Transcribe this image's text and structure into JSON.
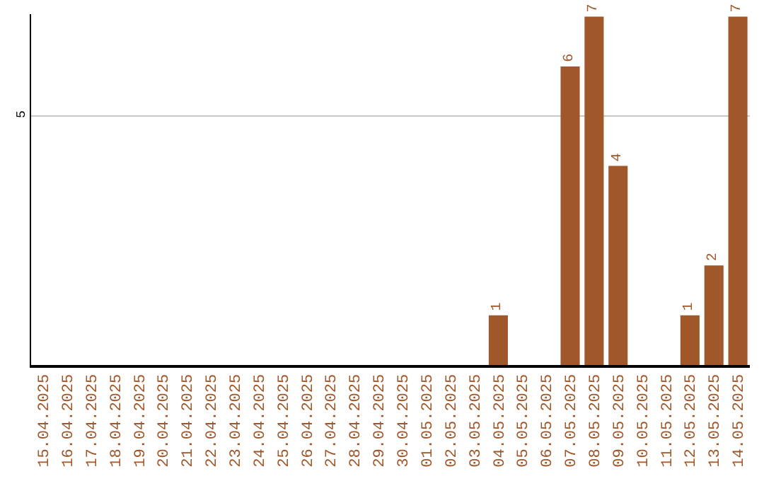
{
  "chart_data": {
    "type": "bar",
    "categories": [
      "15.04.2025",
      "16.04.2025",
      "17.04.2025",
      "18.04.2025",
      "19.04.2025",
      "20.04.2025",
      "21.04.2025",
      "22.04.2025",
      "23.04.2025",
      "24.04.2025",
      "25.04.2025",
      "26.04.2025",
      "27.04.2025",
      "28.04.2025",
      "29.04.2025",
      "30.04.2025",
      "01.05.2025",
      "02.05.2025",
      "03.05.2025",
      "04.05.2025",
      "05.05.2025",
      "06.05.2025",
      "07.05.2025",
      "08.05.2025",
      "09.05.2025",
      "10.05.2025",
      "11.05.2025",
      "12.05.2025",
      "13.05.2025",
      "14.05.2025"
    ],
    "values": [
      null,
      null,
      null,
      null,
      null,
      null,
      null,
      null,
      null,
      null,
      null,
      null,
      null,
      null,
      null,
      null,
      null,
      null,
      null,
      1,
      null,
      null,
      6,
      7,
      4,
      null,
      null,
      1,
      2,
      7
    ],
    "data_labels": true,
    "color": "#a0572a",
    "ylim": [
      0,
      7.05
    ],
    "yticks": [
      5
    ],
    "grid": "y"
  }
}
